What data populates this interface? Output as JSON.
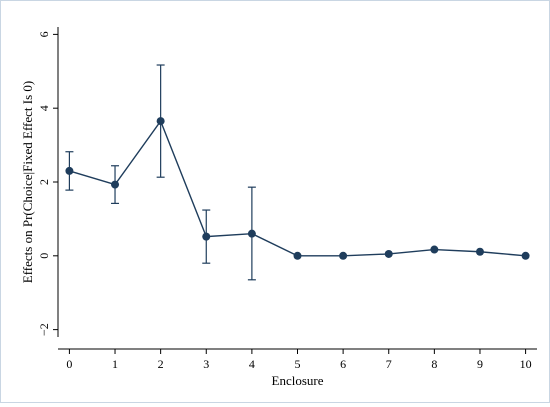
{
  "chart_data": {
    "type": "line",
    "title": "",
    "xlabel": "Enclosure",
    "ylabel": "Effects on Pr(Choice|Fixed Effect Is 0)",
    "x": [
      0,
      1,
      2,
      3,
      4,
      5,
      6,
      7,
      8,
      9,
      10
    ],
    "x_ticks": [
      "0",
      "1",
      "2",
      "3",
      "4",
      "5",
      "6",
      "7",
      "8",
      "9",
      "10"
    ],
    "y_ticks": [
      "−2",
      "0",
      "2",
      "4",
      "6"
    ],
    "y_tick_values": [
      -2,
      0,
      2,
      4,
      6
    ],
    "xlim": [
      -0.25,
      10.25
    ],
    "ylim": [
      -2.2,
      6.2
    ],
    "grid": false,
    "series": [
      {
        "values": [
          2.3,
          1.93,
          3.65,
          0.52,
          0.6,
          0.0,
          0.0,
          0.05,
          0.17,
          0.11,
          0.0
        ],
        "ci_low": [
          1.78,
          1.42,
          2.13,
          -0.2,
          -0.65,
          null,
          null,
          null,
          null,
          null,
          null
        ],
        "ci_high": [
          2.82,
          2.44,
          5.17,
          1.24,
          1.86,
          null,
          null,
          null,
          null,
          null,
          null
        ],
        "color": "#1f3d5c"
      }
    ],
    "colors": {
      "axis": "#000000",
      "series": "#1f3d5c",
      "border": "#c9d6e3"
    }
  }
}
